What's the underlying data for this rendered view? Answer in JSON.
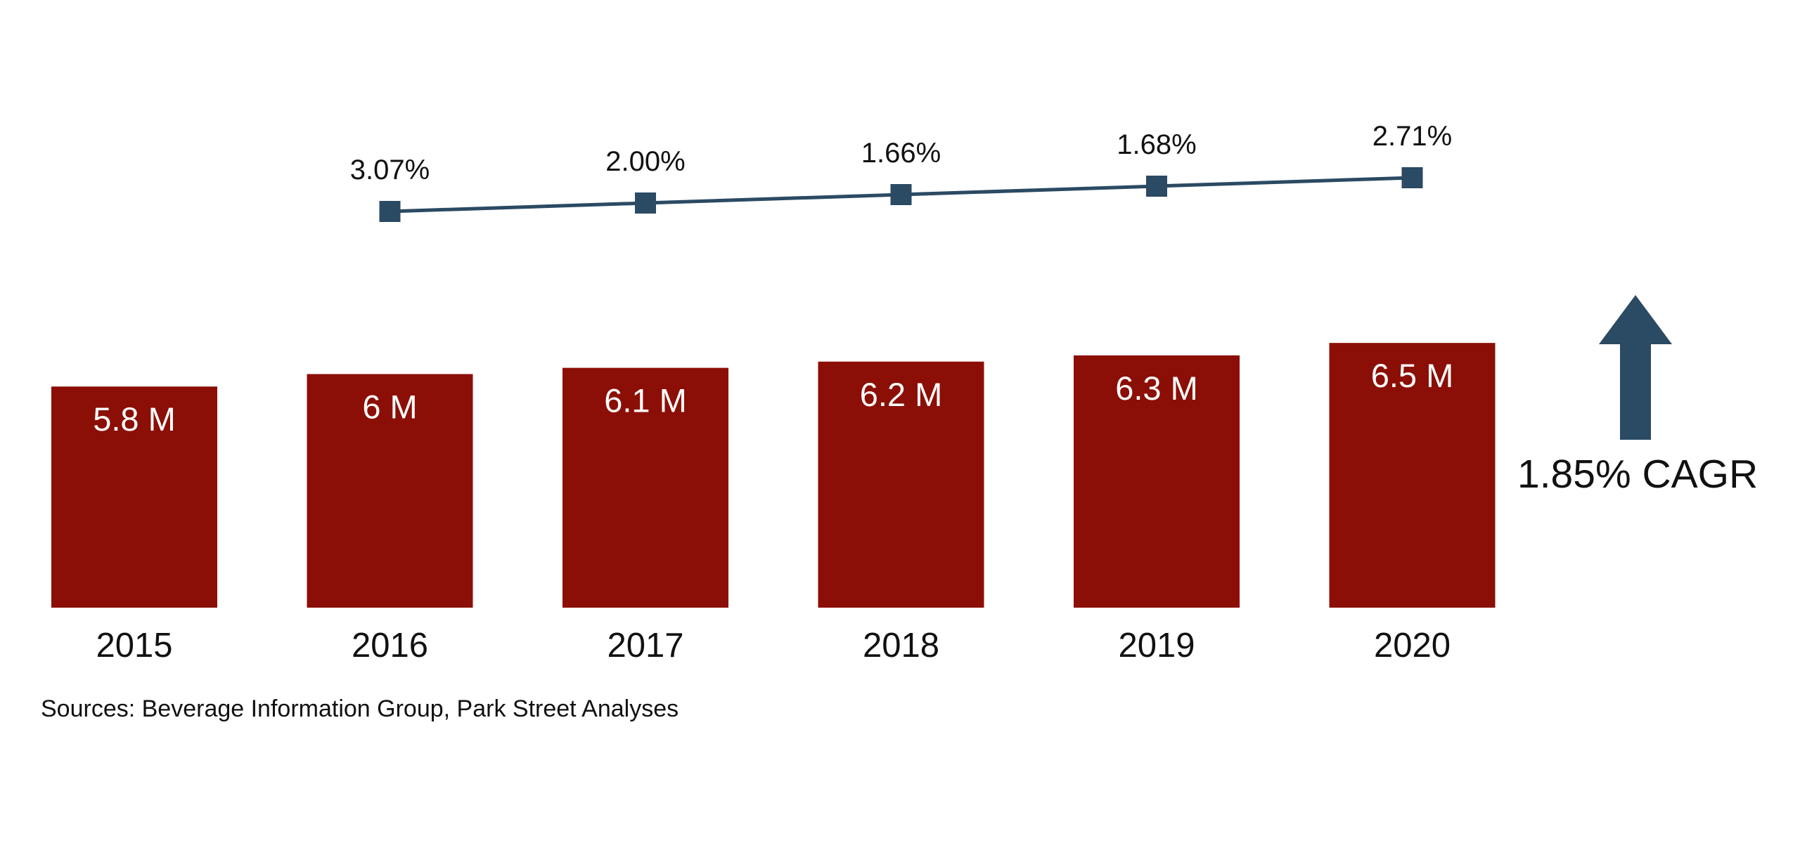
{
  "chart_data": {
    "type": "bar",
    "categories": [
      "2015",
      "2016",
      "2017",
      "2018",
      "2019",
      "2020"
    ],
    "values": [
      5.8,
      6.0,
      6.1,
      6.2,
      6.3,
      6.5
    ],
    "value_labels": [
      "5.8 M",
      "6 M",
      "6.1 M",
      "6.2 M",
      "6.3 M",
      "6.5 M"
    ],
    "growth": {
      "type": "line",
      "categories": [
        "2016",
        "2017",
        "2018",
        "2019",
        "2020"
      ],
      "values": [
        3.07,
        2.0,
        1.66,
        1.68,
        2.71
      ],
      "labels": [
        "3.07%",
        "2.00%",
        "1.66%",
        "1.68%",
        "2.71%"
      ]
    },
    "title": "",
    "xlabel": "",
    "ylabel": "",
    "grid": false,
    "legend": false,
    "colors": {
      "bar": "#8B0F06",
      "line": "#2B4A63",
      "marker": "#2B4A63",
      "arrow": "#2B4A63"
    }
  },
  "annotation": {
    "cagr_label": "1.85% CAGR",
    "arrow_icon": "up-arrow-icon"
  },
  "footer": {
    "source": "Sources: Beverage Information Group, Park Street Analyses"
  }
}
